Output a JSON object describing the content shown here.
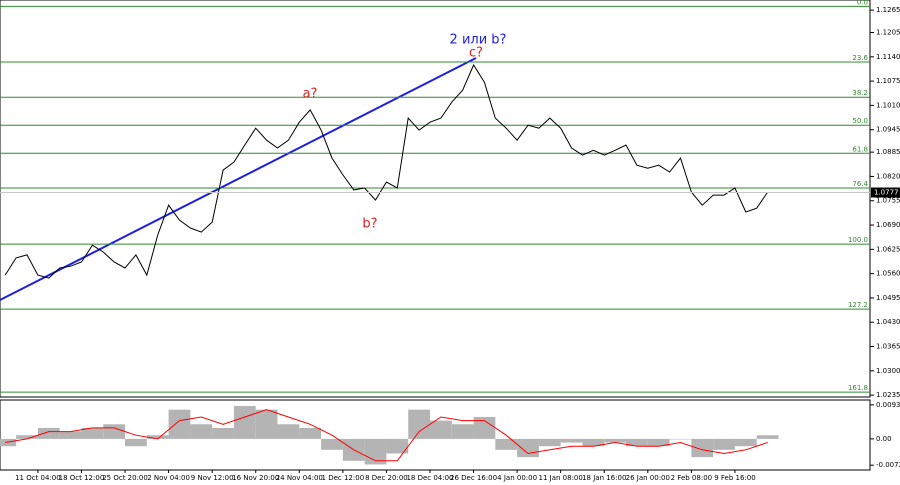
{
  "chart_data": [
    {
      "type": "line",
      "color": "#000000",
      "xlim": [
        0.13,
        20.1
      ],
      "ylim": [
        1.023,
        1.1292
      ],
      "xticks": [
        {
          "value": 1,
          "label": "11 Oct 04:00"
        },
        {
          "value": 2,
          "label": "18 Oct 12:00"
        },
        {
          "value": 3,
          "label": "25 Oct 20:00"
        },
        {
          "value": 4,
          "label": "2 Nov 04:00"
        },
        {
          "value": 5,
          "label": "9 Nov 12:00"
        },
        {
          "value": 6,
          "label": "16 Nov 20:00"
        },
        {
          "value": 7,
          "label": "24 Nov 04:00"
        },
        {
          "value": 8,
          "label": "1 Dec 12:00"
        },
        {
          "value": 9,
          "label": "8 Dec 20:00"
        },
        {
          "value": 10,
          "label": "18 Dec 04:00"
        },
        {
          "value": 11,
          "label": "26 Dec 16:00"
        },
        {
          "value": 12,
          "label": "4 Jan 00:00"
        },
        {
          "value": 13,
          "label": "11 Jan 08:00"
        },
        {
          "value": 14,
          "label": "18 Jan 16:00"
        },
        {
          "value": 15,
          "label": "26 Jan 00:00"
        },
        {
          "value": 16,
          "label": "2 Feb 08:00"
        },
        {
          "value": 17,
          "label": "9 Feb 16:00"
        }
      ],
      "yticks": [
        1.1265,
        1.1205,
        {
          "value": 1.114,
          "label": "1.1140"
        },
        1.1075,
        {
          "value": 1.101,
          "label": "1.1010"
        },
        1.0945,
        1.0885,
        {
          "value": 1.082,
          "label": "1.0820"
        },
        1.0755,
        {
          "value": 1.069,
          "label": "1.0690"
        },
        1.0625,
        {
          "value": 1.056,
          "label": "1.0560"
        },
        1.0495,
        {
          "value": 1.043,
          "label": "1.0430"
        },
        1.0365,
        {
          "value": 1.03,
          "label": "1.0300"
        },
        1.0235
      ],
      "levels": [
        {
          "value": 1.1275,
          "label": "0.0"
        },
        {
          "value": 1.1126,
          "label": "23.6"
        },
        {
          "value": 1.1032,
          "label": "38.2"
        },
        {
          "value": 1.0957,
          "label": "50.0"
        },
        {
          "value": 1.0882,
          "label": "61.8"
        },
        {
          "value": 1.0789,
          "label": "76.4"
        },
        {
          "value": 1.0639,
          "label": "100.0"
        },
        {
          "value": 1.0465,
          "label": "127.2"
        },
        {
          "value": 1.0243,
          "label": "161.8"
        }
      ],
      "level_color": "#2e8b2e",
      "last_price": 1.0777,
      "annotations": [
        "2 или b?",
        "c?",
        "a?",
        "b?"
      ],
      "x": [
        0.25,
        0.5,
        0.75,
        1,
        1.25,
        1.5,
        1.75,
        2,
        2.25,
        2.5,
        2.75,
        3,
        3.25,
        3.5,
        3.75,
        4,
        4.25,
        4.5,
        4.75,
        5,
        5.25,
        5.5,
        5.75,
        6,
        6.25,
        6.5,
        6.75,
        7,
        7.25,
        7.5,
        7.75,
        8,
        8.25,
        8.5,
        8.75,
        9,
        9.25,
        9.5,
        9.75,
        10,
        10.25,
        10.5,
        10.75,
        11,
        11.25,
        11.5,
        11.75,
        12,
        12.25,
        12.5,
        12.75,
        13,
        13.25,
        13.5,
        13.75,
        14,
        14.25,
        14.5,
        14.75,
        15,
        15.25,
        15.5,
        15.75,
        16,
        16.25,
        16.5,
        16.75,
        17,
        17.25,
        17.5,
        17.75
      ],
      "values": [
        1.0556,
        1.0602,
        1.061,
        1.0556,
        1.0548,
        1.0575,
        1.058,
        1.0591,
        1.0636,
        1.0618,
        1.0591,
        1.0575,
        1.061,
        1.0556,
        1.0663,
        1.0743,
        1.0703,
        1.0682,
        1.0671,
        1.0698,
        1.0837,
        1.0858,
        1.0904,
        1.0949,
        1.0917,
        1.0896,
        1.0917,
        1.0965,
        1.0998,
        1.0944,
        1.0869,
        1.0824,
        1.0784,
        1.0789,
        1.0757,
        1.0805,
        1.0789,
        1.0976,
        1.0944,
        1.0965,
        1.0976,
        1.1019,
        1.1051,
        1.1118,
        1.1072,
        1.0976,
        1.0949,
        1.0917,
        1.0957,
        1.0949,
        1.0976,
        1.0949,
        1.0896,
        1.0877,
        1.089,
        1.0877,
        1.089,
        1.0904,
        1.085,
        1.0842,
        1.085,
        1.0832,
        1.0869,
        1.0778,
        1.0743,
        1.077,
        1.077,
        1.0789,
        1.0725,
        1.0735,
        1.0778
      ]
    },
    {
      "type": "bar",
      "xlim": [
        0.13,
        20.1
      ],
      "ylim": [
        -0.00852,
        0.01065
      ],
      "yticks": [
        0.00932,
        {
          "value": 0,
          "label": "0.00"
        },
        -0.0072
      ],
      "x": [
        0.25,
        0.75,
        1.25,
        1.75,
        2.25,
        2.75,
        3.25,
        3.75,
        4.25,
        4.75,
        5.25,
        5.75,
        6.25,
        6.75,
        7.25,
        7.75,
        8.25,
        8.75,
        9.25,
        9.75,
        10.25,
        10.75,
        11.25,
        11.75,
        12.25,
        12.75,
        13.25,
        13.75,
        14.25,
        14.75,
        15.25,
        15.75,
        16.25,
        16.75,
        17.25,
        17.75
      ],
      "series": [
        {
          "color": "#b4b4b4",
          "values": [
            -0.002,
            0.001,
            0.003,
            0.002,
            0.003,
            0.004,
            -0.002,
            0.001,
            0.008,
            0.004,
            0.003,
            0.009,
            0.008,
            0.004,
            0.003,
            -0.003,
            -0.006,
            -0.007,
            -0.004,
            0.008,
            0.005,
            0.004,
            0.006,
            -0.003,
            -0.005,
            -0.002,
            -0.001,
            -0.002,
            -0.001,
            -0.002,
            -0.002,
            0,
            -0.005,
            -0.003,
            -0.002,
            0.001
          ]
        },
        {
          "color": "#ff0000",
          "type": "line",
          "values": [
            -0.001,
            0,
            0.002,
            0.002,
            0.003,
            0.003,
            0.001,
            0,
            0.005,
            0.006,
            0.004,
            0.006,
            0.008,
            0.006,
            0.004,
            0.001,
            -0.003,
            -0.006,
            -0.006,
            0.002,
            0.006,
            0.005,
            0.005,
            0.001,
            -0.004,
            -0.003,
            -0.002,
            -0.002,
            -0.001,
            -0.002,
            -0.002,
            -0.001,
            -0.003,
            -0.004,
            -0.003,
            -0.001
          ]
        }
      ]
    }
  ]
}
